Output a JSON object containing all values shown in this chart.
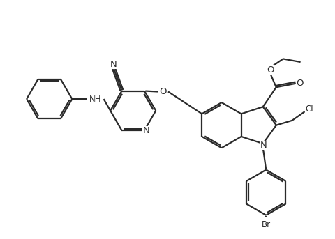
{
  "background_color": "#ffffff",
  "line_color": "#2a2a2a",
  "line_width": 1.6,
  "font_size": 8.5,
  "figsize": [
    4.81,
    3.43
  ],
  "dpi": 100,
  "xlim": [
    -5.5,
    5.0
  ],
  "ylim": [
    -3.2,
    3.0
  ]
}
